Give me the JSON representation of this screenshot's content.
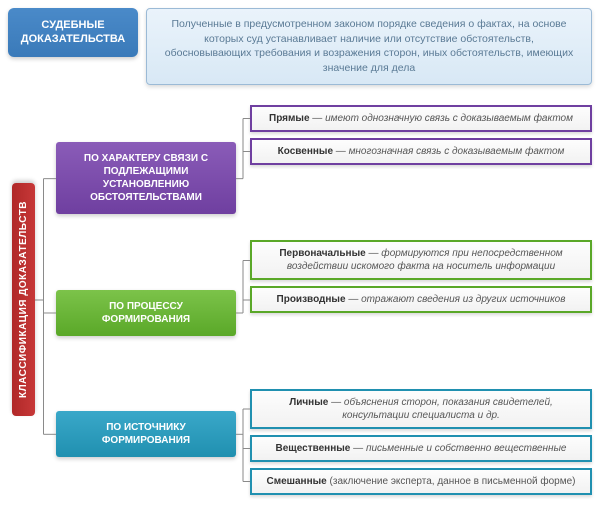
{
  "header": {
    "title": "СУДЕБНЫЕ ДОКАЗАТЕЛЬСТВА",
    "definition": "Полученные в предусмотренном законом порядке сведения о фактах, на основе которых суд устанавливает наличие или отсутствие обстоятельств, обосновывающих требования и возражения сторон, иных обстоятельств, имеющих значение для дела"
  },
  "root_label": "КЛАССИФИКАЦИЯ ДОКАЗАТЕЛЬСТВ",
  "style": {
    "connector_color": "#8a8a8a",
    "connector_width": 1
  },
  "categories": [
    {
      "label": "ПО ХАРАКТЕРУ СВЯЗИ С ПОДЛЕЖАЩИМИ УСТАНОВЛЕНИЮ ОБСТОЯТЕЛЬСТВАМИ",
      "color_top": "#8a5cb8",
      "color_bottom": "#6f3fa0",
      "border": "#6f3fa0",
      "leaves": [
        {
          "term": "Прямые",
          "desc": "имеют однозначную связь с доказываемым фактом"
        },
        {
          "term": "Косвенные",
          "desc": "многозначная связь с доказываемым фактом"
        }
      ]
    },
    {
      "label": "ПО ПРОЦЕССУ ФОРМИРОВАНИЯ",
      "color_top": "#7cc34a",
      "color_bottom": "#5aa828",
      "border": "#5aa828",
      "leaves": [
        {
          "term": "Первоначальные",
          "desc": "формируются при непосредственном воздействии искомого факта на носитель информации"
        },
        {
          "term": "Производные",
          "desc": "отражают сведения из других источников"
        }
      ]
    },
    {
      "label": "ПО ИСТОЧНИКУ ФОРМИРОВАНИЯ",
      "color_top": "#3aa8c9",
      "color_bottom": "#2090b0",
      "border": "#2090b0",
      "leaves": [
        {
          "term": "Личные",
          "desc": "объяснения сторон, показания свидетелей, консультации специалиста и др."
        },
        {
          "term": "Вещественные",
          "desc": "письменные и собственно вещественные"
        },
        {
          "term": "Смешанные",
          "desc_plain": "(заключение эксперта, данное в письменной форме)"
        }
      ]
    }
  ]
}
